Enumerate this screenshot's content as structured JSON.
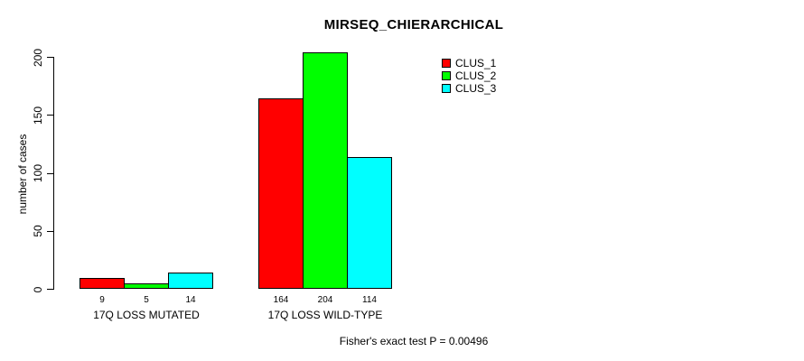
{
  "chart_data": {
    "type": "bar",
    "title": "MIRSEQ_CHIERARCHICAL",
    "ylabel": "number of cases",
    "xlabel": "",
    "categories": [
      "17Q LOSS MUTATED",
      "17Q LOSS WILD-TYPE"
    ],
    "series": [
      {
        "name": "CLUS_1",
        "color": "#ff0000",
        "values": [
          9,
          164
        ]
      },
      {
        "name": "CLUS_2",
        "color": "#00ff00",
        "values": [
          5,
          204
        ]
      },
      {
        "name": "CLUS_3",
        "color": "#00ffff",
        "values": [
          14,
          114
        ]
      }
    ],
    "bar_value_labels": [
      [
        9,
        5,
        14
      ],
      [
        164,
        204,
        114
      ]
    ],
    "yticks": [
      0,
      50,
      100,
      150,
      200
    ],
    "ylim": [
      0,
      200
    ],
    "grid": false,
    "legend_position": "top-right",
    "annotation": "Fisher's exact test P = 0.00496"
  }
}
